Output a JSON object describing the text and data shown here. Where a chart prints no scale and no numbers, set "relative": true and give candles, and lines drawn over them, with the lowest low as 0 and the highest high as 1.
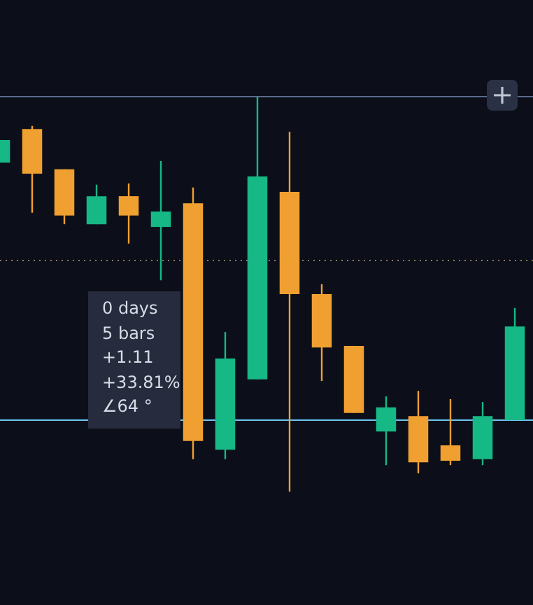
{
  "chart_data": {
    "type": "candlestick",
    "relative": true,
    "categories": [
      null,
      null,
      null,
      null,
      null,
      null,
      null,
      null,
      null,
      null,
      null,
      null,
      null,
      null,
      null,
      null,
      null
    ],
    "ohlc": [
      [
        0.833,
        0.89,
        0.833,
        0.89
      ],
      [
        0.918,
        0.926,
        0.706,
        0.805
      ],
      [
        0.816,
        0.816,
        0.677,
        0.699
      ],
      [
        0.677,
        0.777,
        0.677,
        0.748
      ],
      [
        0.748,
        0.78,
        0.628,
        0.699
      ],
      [
        0.67,
        0.837,
        0.535,
        0.709
      ],
      [
        0.73,
        0.77,
        0.082,
        0.128
      ],
      [
        0.106,
        0.404,
        0.082,
        0.337
      ],
      [
        0.284,
        1,
        0.284,
        0.798
      ],
      [
        0.759,
        0.911,
        0,
        0.5
      ],
      [
        0.5,
        0.525,
        0.28,
        0.365
      ],
      [
        0.369,
        0.369,
        0.199,
        0.199
      ],
      [
        0.152,
        0.241,
        0.067,
        0.213
      ],
      [
        0.191,
        0.255,
        0.046,
        0.074
      ],
      [
        0.117,
        0.234,
        0.067,
        0.078
      ],
      [
        0.082,
        0.227,
        0.067,
        0.191
      ],
      [
        0.181,
        0.465,
        0.181,
        0.418
      ]
    ],
    "colors": [
      "#16b886",
      "#f0a030",
      "#f0a030",
      "#16b886",
      "#f0a030",
      "#16b886",
      "#f0a030",
      "#16b886",
      "#16b886",
      "#f0a030",
      "#f0a030",
      "#f0a030",
      "#16b886",
      "#f0a030",
      "#f0a030",
      "#16b886",
      "#16b886"
    ],
    "ref_lines": [
      {
        "axis": "y",
        "value": 1,
        "color": "#5a6a8a",
        "line_style": "solid"
      },
      {
        "axis": "y",
        "value": 0.585,
        "color": "#8a7a60",
        "line_style": "dotted"
      },
      {
        "axis": "y",
        "value": 0.181,
        "color": "#6ec6f0",
        "line_style": "solid"
      }
    ],
    "annotations": [
      "0 days",
      "5 bars",
      "+1.11",
      "+33.81%",
      "∠64 °"
    ]
  }
}
